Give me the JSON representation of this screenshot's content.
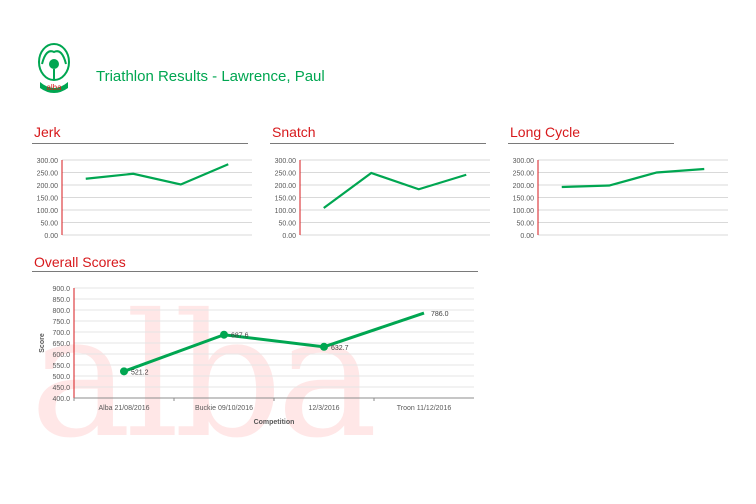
{
  "header": {
    "title": "Triathlon Results - Lawrence, Paul",
    "logo_text": "alba"
  },
  "colors": {
    "accent_green": "#00A651",
    "heading_red": "#D7191C"
  },
  "sections": {
    "jerk": "Jerk",
    "snatch": "Snatch",
    "long_cycle": "Long Cycle",
    "overall": "Overall Scores"
  },
  "chart_data": [
    {
      "type": "line",
      "title": "Jerk",
      "ylim": [
        0,
        300
      ],
      "yticks": [
        "300.00",
        "250.00",
        "200.00",
        "150.00",
        "100.00",
        "50.00",
        "0.00"
      ],
      "values": [
        225,
        245,
        202,
        283
      ],
      "grid": true
    },
    {
      "type": "line",
      "title": "Snatch",
      "ylim": [
        0,
        300
      ],
      "yticks": [
        "300.00",
        "250.00",
        "200.00",
        "150.00",
        "100.00",
        "50.00",
        "0.00"
      ],
      "values": [
        108,
        248,
        183,
        241
      ],
      "grid": true
    },
    {
      "type": "line",
      "title": "Long Cycle",
      "ylim": [
        0,
        300
      ],
      "yticks": [
        "300.00",
        "250.00",
        "200.00",
        "150.00",
        "100.00",
        "50.00",
        "0.00"
      ],
      "values": [
        192,
        198,
        250,
        264
      ],
      "grid": true
    },
    {
      "type": "line",
      "title": "Overall Scores",
      "xlabel": "Competition",
      "ylabel": "Score",
      "ylim": [
        400,
        900
      ],
      "yticks": [
        "900.0",
        "850.0",
        "800.0",
        "750.0",
        "700.0",
        "650.0",
        "600.0",
        "550.0",
        "500.0",
        "450.0",
        "400.0"
      ],
      "categories": [
        "Alba 21/08/2016",
        "Buckie 09/10/2016",
        "12/3/2016",
        "Troon 11/12/2016"
      ],
      "values": [
        521.2,
        687.6,
        632.7,
        786.0
      ],
      "data_labels": [
        "521.2",
        "687.6",
        "632.7",
        "786.0"
      ],
      "markers": [
        true,
        true,
        true,
        false
      ],
      "grid": true
    }
  ]
}
